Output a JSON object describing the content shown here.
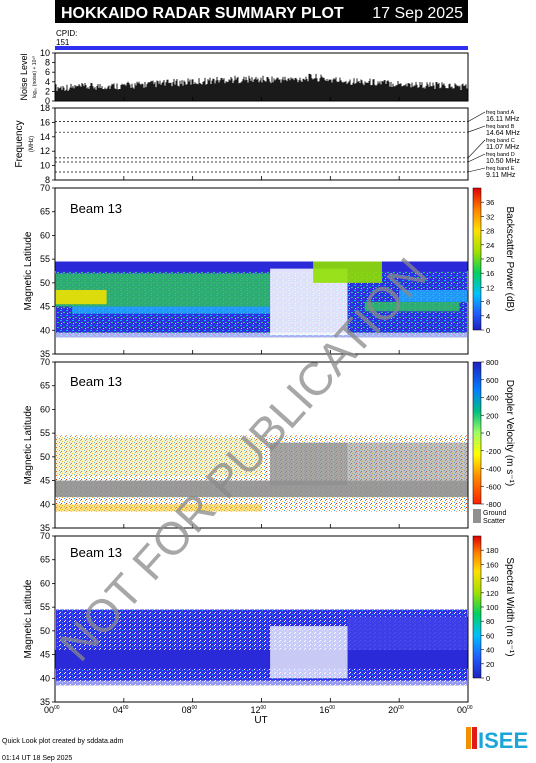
{
  "header": {
    "title": "HOKKAIDO RADAR SUMMARY PLOT",
    "date": "17 Sep 2025",
    "cpid_label": "CPID:",
    "cpid_value": "151"
  },
  "watermark": "NOT FOR PUBLICATION",
  "footer": {
    "credit": "Quick Look plot created by sddata.adm",
    "created": "01:14 UT 18 Sep 2025",
    "logo": "ISEE"
  },
  "colors": {
    "cpid_bar": "#2f2ff0",
    "ground_scatter": "#909090",
    "watermark": "#8a8a8a"
  },
  "chart_data": [
    {
      "type": "area",
      "panel": "noise",
      "ylabel": "Noise Level",
      "ylabel_sub": "log₁₀ (noise) + 10¹⁰",
      "ylim": [
        0,
        10
      ],
      "yticks": [
        "0",
        "2",
        "4",
        "6",
        "8",
        "10"
      ],
      "series": [
        {
          "x": [
            0,
            2,
            4,
            6,
            8,
            10,
            12,
            14,
            15,
            16,
            18,
            20,
            22,
            24
          ],
          "values": [
            2.8,
            3.0,
            3.2,
            3.6,
            4.0,
            4.5,
            4.5,
            4.5,
            5.0,
            4.4,
            4.0,
            3.6,
            3.2,
            3.0
          ]
        }
      ]
    },
    {
      "type": "line",
      "panel": "frequency",
      "ylabel": "Frequency",
      "yunit": "(MHz)",
      "ylim": [
        8,
        18
      ],
      "yticks": [
        "8",
        "10",
        "12",
        "14",
        "16",
        "18"
      ],
      "series": [
        {
          "name": "freq band A",
          "label": "16.11 MHz",
          "y": 16.11
        },
        {
          "name": "freq band B",
          "label": "14.64 MHz",
          "y": 14.64
        },
        {
          "name": "freq band C",
          "label": "11.07 MHz",
          "y": 11.07
        },
        {
          "name": "freq band D",
          "label": "10.50 MHz",
          "y": 10.5
        },
        {
          "name": "freq band E",
          "label": "9.11 MHz",
          "y": 9.11
        }
      ]
    },
    {
      "type": "heatmap",
      "panel": "power",
      "beam": "Beam 13",
      "ylabel": "Magnetic Latitude",
      "ylim": [
        35,
        70
      ],
      "yticks": [
        "35",
        "40",
        "45",
        "50",
        "55",
        "60",
        "65",
        "70"
      ],
      "colorbar": {
        "label": "Backscatter Power (dB)",
        "range": [
          0,
          40
        ],
        "ticks": [
          "0",
          "4",
          "8",
          "12",
          "16",
          "20",
          "24",
          "28",
          "32",
          "36"
        ]
      }
    },
    {
      "type": "heatmap",
      "panel": "velocity",
      "beam": "Beam 13",
      "ylabel": "Magnetic Latitude",
      "ylim": [
        35,
        70
      ],
      "yticks": [
        "35",
        "40",
        "45",
        "50",
        "55",
        "60",
        "65",
        "70"
      ],
      "colorbar": {
        "label": "Doppler Velocity (m s⁻¹)",
        "range": [
          -800,
          800
        ],
        "ticks": [
          "-800",
          "-600",
          "-400",
          "-200",
          "0",
          "200",
          "400",
          "600",
          "800"
        ],
        "extra_labels": [
          "Ground",
          "Scatter"
        ]
      }
    },
    {
      "type": "heatmap",
      "panel": "width",
      "beam": "Beam 13",
      "ylabel": "Magnetic Latitude",
      "ylim": [
        35,
        70
      ],
      "yticks": [
        "35",
        "40",
        "45",
        "50",
        "55",
        "60",
        "65",
        "70"
      ],
      "colorbar": {
        "label": "Spectral Width (m s⁻¹)",
        "range": [
          0,
          200
        ],
        "ticks": [
          "0",
          "20",
          "40",
          "60",
          "80",
          "100",
          "120",
          "140",
          "160",
          "180"
        ]
      }
    }
  ],
  "x_axis": {
    "label": "UT",
    "range": [
      0,
      24
    ],
    "ticks": [
      "00",
      "04",
      "08",
      "12",
      "16",
      "20",
      "00"
    ],
    "tick_superscript": "00"
  }
}
